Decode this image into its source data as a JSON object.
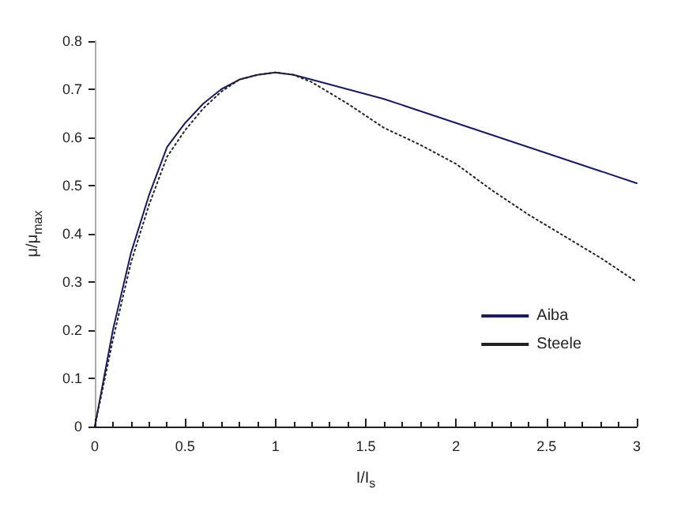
{
  "chart_data": {
    "type": "line",
    "xlabel": "I/I$_{s}$",
    "ylabel": "μ/μ$_{max}$",
    "xlim": [
      0,
      3
    ],
    "xticks": [
      0,
      0.5,
      1,
      1.5,
      2,
      2.5,
      3
    ],
    "ylim": [
      0,
      0.8
    ],
    "yticks": [
      0,
      0.1,
      0.2,
      0.3,
      0.4,
      0.5,
      0.6,
      0.7,
      0.8
    ],
    "grid": false,
    "legend": "bottom right",
    "marker": "none",
    "series": [
      {
        "name": "Aiba",
        "color": "#1a1a5e",
        "line_style": "solid",
        "x": [
          0,
          0.1,
          0.2,
          0.3,
          0.4,
          0.5,
          0.6,
          0.7,
          0.8,
          0.9,
          1,
          1.1,
          1.2,
          1.4,
          1.6,
          1.8,
          2,
          2.2,
          2.4,
          2.6,
          2.8,
          3
        ],
        "values": [
          0,
          0.2,
          0.36,
          0.48,
          0.58,
          0.63,
          0.67,
          0.7,
          0.72,
          0.73,
          0.735,
          0.73,
          0.72,
          0.7,
          0.68,
          0.655,
          0.63,
          0.605,
          0.58,
          0.555,
          0.53,
          0.505
        ]
      },
      {
        "name": "Steele",
        "color": "#222222",
        "line_style": "dotted",
        "x": [
          0,
          0.1,
          0.2,
          0.3,
          0.4,
          0.5,
          0.6,
          0.7,
          0.8,
          0.9,
          1,
          1.1,
          1.2,
          1.4,
          1.6,
          1.8,
          2,
          2.2,
          2.4,
          2.6,
          2.8,
          3
        ],
        "values": [
          0,
          0.18,
          0.34,
          0.46,
          0.56,
          0.615,
          0.66,
          0.695,
          0.72,
          0.73,
          0.735,
          0.73,
          0.715,
          0.67,
          0.62,
          0.585,
          0.545,
          0.49,
          0.44,
          0.395,
          0.35,
          0.3
        ]
      }
    ]
  }
}
